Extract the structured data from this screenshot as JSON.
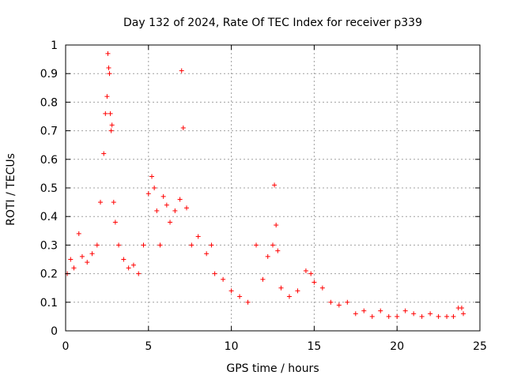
{
  "chart_data": {
    "type": "scatter",
    "title": "Day 132 of 2024, Rate Of TEC Index for receiver p339",
    "xlabel": "GPS time / hours",
    "ylabel": "ROTI / TECUs",
    "xlim": [
      0,
      25
    ],
    "ylim": [
      0,
      1
    ],
    "x_ticks": [
      "0",
      "5",
      "10",
      "15",
      "20",
      "25"
    ],
    "y_ticks": [
      "0",
      "0.1",
      "0.2",
      "0.3",
      "0.4",
      "0.5",
      "0.6",
      "0.7",
      "0.8",
      "0.9",
      "1"
    ],
    "grid": true,
    "marker": "+",
    "color": "#ff0000",
    "series": [
      {
        "x": [
          0.1,
          0.3,
          0.5,
          0.8,
          1.0,
          1.3,
          1.6,
          1.9,
          2.1,
          2.3,
          2.4,
          2.5,
          2.55,
          2.6,
          2.65,
          2.7,
          2.75,
          2.8,
          2.9,
          3.0,
          3.2,
          3.5,
          3.8,
          4.1,
          4.4,
          4.7,
          5.0,
          5.2,
          5.35,
          5.5,
          5.7,
          5.9,
          6.1,
          6.3,
          6.6,
          6.9,
          7.0,
          7.1,
          7.3,
          7.6,
          8.0,
          8.5,
          8.8,
          9.0,
          9.5,
          10.0,
          10.5,
          11.0,
          11.5,
          11.9,
          12.2,
          12.5,
          12.6,
          12.7,
          12.8,
          13.0,
          13.5,
          14.0,
          14.5,
          14.8,
          15.0,
          15.5,
          16.0,
          16.5,
          17.0,
          17.5,
          18.0,
          18.5,
          19.0,
          19.5,
          20.0,
          20.5,
          21.0,
          21.5,
          22.0,
          22.5,
          23.0,
          23.4,
          23.7,
          23.9,
          24.0
        ],
        "y": [
          0.2,
          0.25,
          0.22,
          0.34,
          0.26,
          0.24,
          0.27,
          0.3,
          0.45,
          0.62,
          0.76,
          0.82,
          0.97,
          0.92,
          0.9,
          0.76,
          0.7,
          0.72,
          0.45,
          0.38,
          0.3,
          0.25,
          0.22,
          0.23,
          0.2,
          0.3,
          0.48,
          0.54,
          0.5,
          0.42,
          0.3,
          0.47,
          0.44,
          0.38,
          0.42,
          0.46,
          0.91,
          0.71,
          0.43,
          0.3,
          0.33,
          0.27,
          0.3,
          0.2,
          0.18,
          0.14,
          0.12,
          0.1,
          0.3,
          0.18,
          0.26,
          0.3,
          0.51,
          0.37,
          0.28,
          0.15,
          0.12,
          0.14,
          0.21,
          0.2,
          0.17,
          0.15,
          0.1,
          0.09,
          0.1,
          0.06,
          0.07,
          0.05,
          0.07,
          0.05,
          0.05,
          0.07,
          0.06,
          0.05,
          0.06,
          0.05,
          0.05,
          0.05,
          0.08,
          0.08,
          0.06
        ]
      }
    ]
  }
}
